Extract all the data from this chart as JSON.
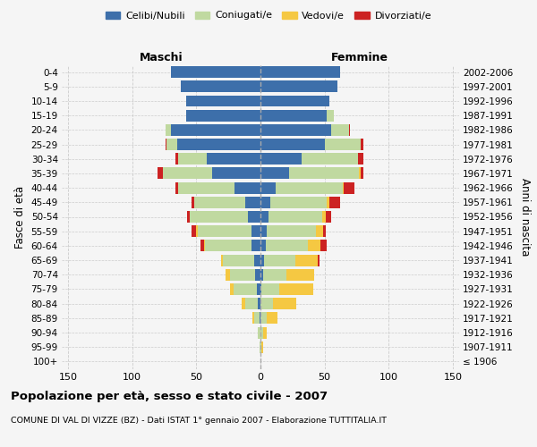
{
  "age_groups": [
    "100+",
    "95-99",
    "90-94",
    "85-89",
    "80-84",
    "75-79",
    "70-74",
    "65-69",
    "60-64",
    "55-59",
    "50-54",
    "45-49",
    "40-44",
    "35-39",
    "30-34",
    "25-29",
    "20-24",
    "15-19",
    "10-14",
    "5-9",
    "0-4"
  ],
  "birth_years": [
    "≤ 1906",
    "1907-1911",
    "1912-1916",
    "1917-1921",
    "1922-1926",
    "1927-1931",
    "1932-1936",
    "1937-1941",
    "1942-1946",
    "1947-1951",
    "1952-1956",
    "1957-1961",
    "1962-1966",
    "1967-1971",
    "1972-1976",
    "1977-1981",
    "1982-1986",
    "1987-1991",
    "1992-1996",
    "1997-2001",
    "2002-2006"
  ],
  "males": {
    "celibi": [
      0,
      0,
      0,
      1,
      2,
      3,
      4,
      5,
      7,
      7,
      10,
      12,
      20,
      38,
      42,
      65,
      70,
      58,
      58,
      62,
      70
    ],
    "coniugati": [
      0,
      1,
      2,
      4,
      10,
      18,
      20,
      24,
      36,
      42,
      45,
      40,
      44,
      38,
      22,
      8,
      4,
      0,
      0,
      0,
      0
    ],
    "vedovi": [
      0,
      0,
      0,
      1,
      3,
      3,
      3,
      2,
      1,
      1,
      0,
      0,
      0,
      0,
      0,
      0,
      0,
      0,
      0,
      0,
      0
    ],
    "divorziati": [
      0,
      0,
      0,
      0,
      0,
      0,
      0,
      0,
      3,
      4,
      2,
      2,
      2,
      4,
      2,
      1,
      0,
      0,
      0,
      0,
      0
    ]
  },
  "females": {
    "nubili": [
      0,
      0,
      0,
      0,
      0,
      1,
      2,
      3,
      4,
      5,
      6,
      8,
      12,
      22,
      32,
      50,
      55,
      52,
      54,
      60,
      62
    ],
    "coniugate": [
      0,
      1,
      2,
      5,
      10,
      14,
      18,
      24,
      33,
      38,
      42,
      44,
      52,
      55,
      44,
      28,
      14,
      5,
      0,
      0,
      0
    ],
    "vedove": [
      0,
      1,
      3,
      8,
      18,
      26,
      22,
      18,
      10,
      6,
      3,
      2,
      1,
      1,
      0,
      0,
      0,
      0,
      0,
      0,
      0
    ],
    "divorziate": [
      0,
      0,
      0,
      0,
      0,
      0,
      0,
      1,
      5,
      2,
      4,
      8,
      8,
      2,
      4,
      2,
      1,
      0,
      0,
      0,
      0
    ]
  },
  "colors": {
    "celibi_nubili": "#3d6faa",
    "coniugati": "#c0d9a0",
    "vedovi": "#f5c842",
    "divorziati": "#cc2222"
  },
  "xlim": 155,
  "title": "Popolazione per età, sesso e stato civile - 2007",
  "subtitle": "COMUNE DI VAL DI VIZZE (BZ) - Dati ISTAT 1° gennaio 2007 - Elaborazione TUTTITALIA.IT",
  "ylabel": "Fasce di età",
  "ylabel_right": "Anni di nascita",
  "xlabel_maschi": "Maschi",
  "xlabel_femmine": "Femmine",
  "xticks": [
    -150,
    -100,
    -50,
    0,
    50,
    100,
    150
  ],
  "xtick_labels": [
    "150",
    "100",
    "50",
    "0",
    "50",
    "100",
    "150"
  ],
  "bg_color": "#f5f5f5",
  "grid_color": "#cccccc"
}
